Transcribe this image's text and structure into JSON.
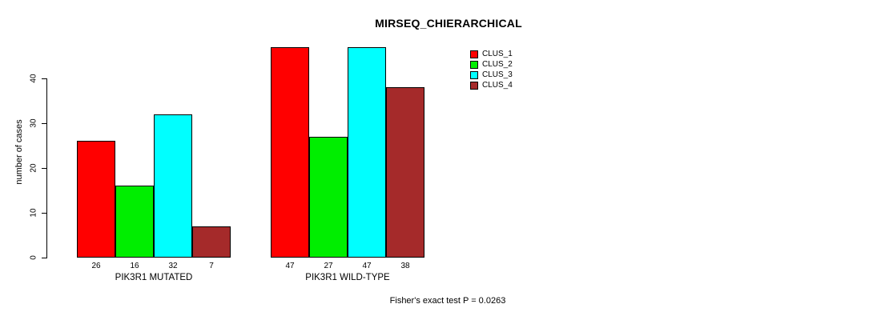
{
  "title": "MIRSEQ_CHIERARCHICAL",
  "footer": {
    "stat_text": "Fisher's exact test P = 0.0263"
  },
  "chart_data": {
    "type": "bar",
    "title": "MIRSEQ_CHIERARCHICAL",
    "xlabel": "",
    "ylabel": "number of cases",
    "ylim": [
      0,
      47
    ],
    "yticks": [
      0,
      10,
      20,
      30,
      40
    ],
    "grid": false,
    "legend_position": "top-right",
    "categories": [
      "PIK3R1 MUTATED",
      "PIK3R1 WILD-TYPE"
    ],
    "series": [
      {
        "name": "CLUS_1",
        "color": "#FF0000",
        "values": [
          26,
          47
        ]
      },
      {
        "name": "CLUS_2",
        "color": "#00EE00",
        "values": [
          16,
          27
        ]
      },
      {
        "name": "CLUS_3",
        "color": "#00FFFF",
        "values": [
          32,
          47
        ]
      },
      {
        "name": "CLUS_4",
        "color": "#A52A2A",
        "values": [
          7,
          38
        ]
      }
    ],
    "groups": [
      {
        "label": "PIK3R1 MUTATED",
        "values": [
          26,
          16,
          32,
          7
        ]
      },
      {
        "label": "PIK3R1 WILD-TYPE",
        "values": [
          47,
          27,
          47,
          38
        ]
      }
    ],
    "annotation": "Fisher's exact test P = 0.0263"
  }
}
